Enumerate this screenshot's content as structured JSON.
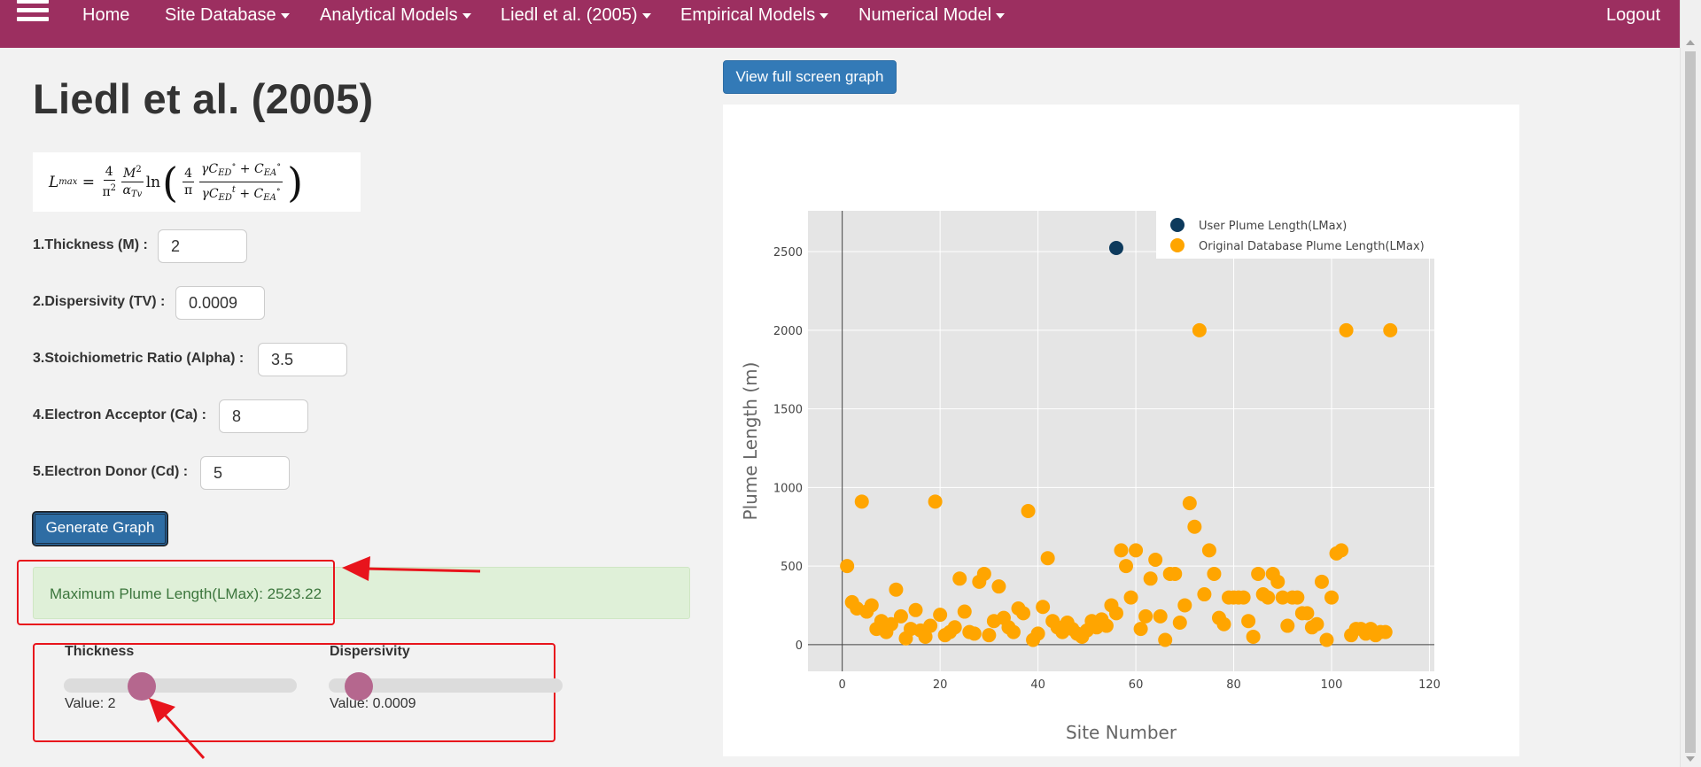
{
  "nav": {
    "items": [
      {
        "label": "Home",
        "dropdown": false
      },
      {
        "label": "Site Database",
        "dropdown": true
      },
      {
        "label": "Analytical Models",
        "dropdown": true
      },
      {
        "label": "Liedl et al. (2005)",
        "dropdown": true
      },
      {
        "label": "Empirical Models",
        "dropdown": true
      },
      {
        "label": "Numerical Model",
        "dropdown": true
      }
    ],
    "logout": "Logout",
    "color": "#9c2f60"
  },
  "page": {
    "title": "Liedl et al. (2005)"
  },
  "form": {
    "fields": [
      {
        "label": "1.Thickness (M) :",
        "value": "2"
      },
      {
        "label": "2.Dispersivity (TV) :",
        "value": "0.0009"
      },
      {
        "label": "3.Stoichiometric Ratio (Alpha) :",
        "value": "3.5"
      },
      {
        "label": "4.Electron Acceptor (Ca) :",
        "value": "8"
      },
      {
        "label": "5.Electron Donor (Cd) :",
        "value": "5"
      }
    ],
    "generate_label": "Generate Graph"
  },
  "result": {
    "text": "Maximum Plume Length(LMax): 2523.22"
  },
  "sliders": [
    {
      "title": "Thickness",
      "value_text": "Value: 2",
      "fraction": 0.33
    },
    {
      "title": "Dispersivity",
      "value_text": "Value: 0.0009",
      "fraction": 0.13
    }
  ],
  "graph": {
    "fullscreen_label": "View full screen graph"
  },
  "chart_data": {
    "type": "scatter",
    "title": "",
    "xlabel": "Site Number",
    "ylabel": "Plume Length (m)",
    "xlim": [
      -7,
      121
    ],
    "ylim": [
      -170,
      2760
    ],
    "xticks": [
      0,
      20,
      40,
      60,
      80,
      100,
      120
    ],
    "yticks": [
      0,
      500,
      1000,
      1500,
      2000,
      2500
    ],
    "grid": true,
    "legend_position": "top-right",
    "series": [
      {
        "name": "User Plume Length(LMax)",
        "color": "#0d3a5c",
        "points": [
          [
            56,
            2523.22
          ]
        ]
      },
      {
        "name": "Original Database Plume Length(LMax)",
        "color": "#ffa500",
        "points": [
          [
            1,
            500
          ],
          [
            2,
            270
          ],
          [
            3,
            230
          ],
          [
            4,
            910
          ],
          [
            5,
            210
          ],
          [
            6,
            250
          ],
          [
            7,
            100
          ],
          [
            8,
            150
          ],
          [
            9,
            80
          ],
          [
            10,
            130
          ],
          [
            11,
            350
          ],
          [
            12,
            180
          ],
          [
            13,
            40
          ],
          [
            14,
            100
          ],
          [
            15,
            220
          ],
          [
            16,
            90
          ],
          [
            17,
            50
          ],
          [
            18,
            120
          ],
          [
            19,
            910
          ],
          [
            20,
            190
          ],
          [
            21,
            60
          ],
          [
            22,
            80
          ],
          [
            23,
            110
          ],
          [
            24,
            420
          ],
          [
            25,
            210
          ],
          [
            26,
            80
          ],
          [
            27,
            70
          ],
          [
            28,
            400
          ],
          [
            29,
            450
          ],
          [
            30,
            60
          ],
          [
            31,
            150
          ],
          [
            32,
            370
          ],
          [
            33,
            170
          ],
          [
            34,
            110
          ],
          [
            35,
            80
          ],
          [
            36,
            230
          ],
          [
            37,
            200
          ],
          [
            38,
            850
          ],
          [
            39,
            30
          ],
          [
            40,
            70
          ],
          [
            41,
            240
          ],
          [
            42,
            550
          ],
          [
            43,
            150
          ],
          [
            44,
            110
          ],
          [
            45,
            80
          ],
          [
            46,
            140
          ],
          [
            47,
            100
          ],
          [
            48,
            70
          ],
          [
            49,
            50
          ],
          [
            50,
            90
          ],
          [
            51,
            150
          ],
          [
            52,
            110
          ],
          [
            53,
            160
          ],
          [
            54,
            120
          ],
          [
            55,
            250
          ],
          [
            56,
            200
          ],
          [
            57,
            600
          ],
          [
            58,
            500
          ],
          [
            59,
            300
          ],
          [
            60,
            600
          ],
          [
            61,
            100
          ],
          [
            62,
            180
          ],
          [
            63,
            420
          ],
          [
            64,
            540
          ],
          [
            65,
            180
          ],
          [
            66,
            30
          ],
          [
            67,
            450
          ],
          [
            68,
            450
          ],
          [
            69,
            140
          ],
          [
            70,
            250
          ],
          [
            71,
            900
          ],
          [
            72,
            750
          ],
          [
            73,
            2000
          ],
          [
            74,
            320
          ],
          [
            75,
            600
          ],
          [
            76,
            450
          ],
          [
            77,
            170
          ],
          [
            78,
            130
          ],
          [
            79,
            300
          ],
          [
            80,
            300
          ],
          [
            81,
            300
          ],
          [
            82,
            300
          ],
          [
            83,
            150
          ],
          [
            84,
            50
          ],
          [
            85,
            450
          ],
          [
            86,
            320
          ],
          [
            87,
            300
          ],
          [
            88,
            450
          ],
          [
            89,
            400
          ],
          [
            90,
            300
          ],
          [
            91,
            120
          ],
          [
            92,
            300
          ],
          [
            93,
            300
          ],
          [
            94,
            200
          ],
          [
            95,
            200
          ],
          [
            96,
            110
          ],
          [
            97,
            130
          ],
          [
            98,
            400
          ],
          [
            99,
            30
          ],
          [
            100,
            300
          ],
          [
            101,
            580
          ],
          [
            102,
            600
          ],
          [
            103,
            2000
          ],
          [
            104,
            60
          ],
          [
            105,
            100
          ],
          [
            106,
            100
          ],
          [
            107,
            70
          ],
          [
            108,
            100
          ],
          [
            109,
            60
          ],
          [
            110,
            80
          ],
          [
            111,
            80
          ],
          [
            112,
            2000
          ]
        ]
      }
    ]
  }
}
